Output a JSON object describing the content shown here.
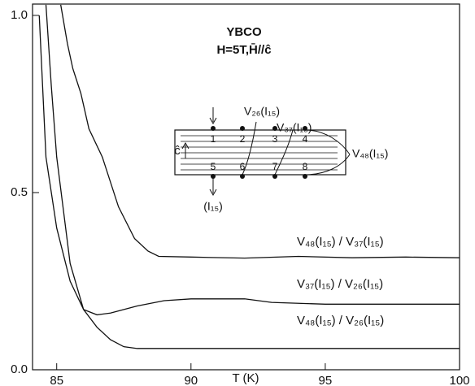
{
  "chart_data": {
    "type": "line",
    "xlabel": "T (K)",
    "xlim": [
      84.1,
      100
    ],
    "xticks": [
      85,
      90,
      95,
      100
    ],
    "ylim": [
      0,
      1.032
    ],
    "yticks": [
      {
        "value": 0,
        "label": "0.0"
      },
      {
        "value": 0.5,
        "label": "0.5"
      },
      {
        "value": 1,
        "label": "1.0"
      }
    ],
    "annotations": [
      "YBCO",
      "H=5T,H̄//ĉ",
      "V₂₆(I₁₅)",
      "V₃₇(I₁₅)",
      "V₄₈(I₁₅)",
      "(I₁₅)",
      "ĉ",
      "1",
      "2",
      "3",
      "4",
      "5",
      "6",
      "7",
      "8"
    ],
    "series": [
      {
        "name": "V₄₈(I₁₅) / V₃₇(I₁₅)",
        "color": "#111111",
        "x": [
          85.15,
          85.4,
          85.6,
          85.9,
          86.2,
          86.7,
          87.3,
          87.9,
          88.4,
          88.8,
          90,
          92,
          94,
          96,
          98,
          100
        ],
        "values": [
          1.03,
          0.92,
          0.85,
          0.78,
          0.68,
          0.6,
          0.46,
          0.37,
          0.335,
          0.32,
          0.318,
          0.315,
          0.32,
          0.316,
          0.318,
          0.316
        ]
      },
      {
        "name": "V₃₇(I₁₅) / V₂₆(I₁₅)",
        "color": "#111111",
        "x": [
          84.6,
          84.8,
          85,
          85.5,
          86,
          86.5,
          87,
          88,
          89,
          90,
          92,
          93,
          95,
          97,
          100
        ],
        "values": [
          1.03,
          0.8,
          0.6,
          0.3,
          0.17,
          0.155,
          0.16,
          0.18,
          0.195,
          0.2,
          0.2,
          0.19,
          0.185,
          0.185,
          0.185
        ]
      },
      {
        "name": "V₄₈(I₁₅) / V₂₆(I₁₅)",
        "color": "#111111",
        "x": [
          84.35,
          84.6,
          85,
          85.5,
          86,
          86.5,
          87,
          87.5,
          88,
          90,
          95,
          100
        ],
        "values": [
          1.0,
          0.6,
          0.4,
          0.25,
          0.17,
          0.12,
          0.085,
          0.065,
          0.06,
          0.06,
          0.06,
          0.06
        ]
      }
    ]
  }
}
